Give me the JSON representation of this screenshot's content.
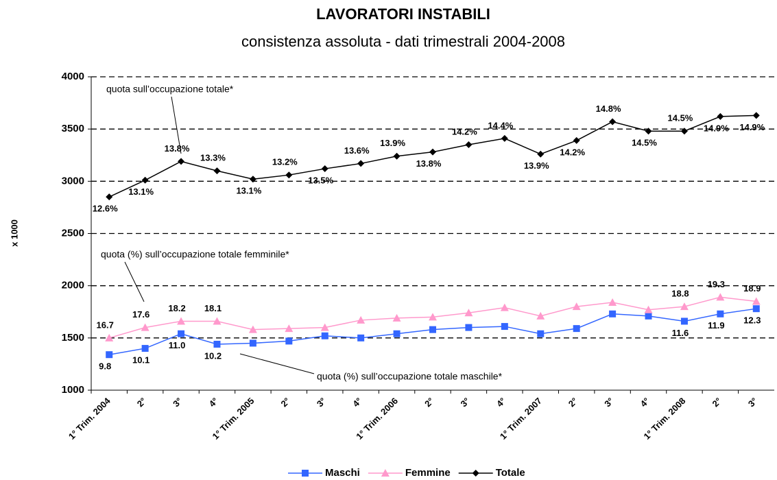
{
  "chart_data": {
    "type": "line",
    "title": "LAVORATORI INSTABILI",
    "subtitle": "consistenza assoluta - dati trimestrali 2004-2008",
    "y_label": "x 1000",
    "categories": [
      "1° Trim. 2004",
      "2°",
      "3°",
      "4°",
      "1° Trim. 2005",
      "2°",
      "3°",
      "4°",
      "1° Trim. 2006",
      "2°",
      "3°",
      "4°",
      "1° Trim. 2007",
      "2°",
      "3°",
      "4°",
      "1° Trim. 2008",
      "2°",
      "3°"
    ],
    "series": [
      {
        "name": "Maschi",
        "color": "#3366ff",
        "marker": "square",
        "values": [
          1340,
          1400,
          1540,
          1440,
          1450,
          1470,
          1520,
          1500,
          1540,
          1580,
          1600,
          1610,
          1540,
          1590,
          1730,
          1710,
          1660,
          1730,
          1780
        ],
        "point_labels": [
          "9.8",
          "10.1",
          "11.0",
          "10.2",
          null,
          null,
          null,
          null,
          null,
          null,
          null,
          null,
          null,
          null,
          null,
          null,
          "11.6",
          "11.9",
          "12.3"
        ]
      },
      {
        "name": "Femmine",
        "color": "#ff99cc",
        "marker": "triangle",
        "values": [
          1500,
          1600,
          1660,
          1660,
          1580,
          1590,
          1600,
          1670,
          1690,
          1700,
          1740,
          1790,
          1710,
          1800,
          1840,
          1770,
          1800,
          1890,
          1850
        ],
        "point_labels": [
          "16.7",
          "17.6",
          "18.2",
          "18.1",
          null,
          null,
          null,
          null,
          null,
          null,
          null,
          null,
          null,
          null,
          null,
          null,
          "18.8",
          "19.3",
          "18.9"
        ]
      },
      {
        "name": "Totale",
        "color": "#000000",
        "marker": "diamond",
        "values": [
          2850,
          3010,
          3190,
          3100,
          3020,
          3060,
          3120,
          3170,
          3240,
          3280,
          3350,
          3410,
          3260,
          3390,
          3570,
          3480,
          3480,
          3620,
          3630
        ],
        "point_labels": [
          "12.6%",
          "13.1%",
          "13.8%",
          "13.3%",
          "13.1%",
          "13.2%",
          "13.5%",
          "13.6%",
          "13.9%",
          "13.8%",
          "14.2%",
          "14.4%",
          "13.9%",
          "14.2%",
          "14.8%",
          "14.5%",
          "14.5%",
          "14.9%",
          "14.9%"
        ]
      }
    ],
    "annotations": [
      "quota sull’occupazione totale*",
      "quota (%) sull’occupazione totale femminile*",
      "quota (%) sull’occupazione totale maschile*"
    ],
    "ylim": [
      1000,
      4000
    ],
    "yticks": [
      1000,
      1500,
      2000,
      2500,
      3000,
      3500,
      4000
    ],
    "grid": true,
    "legend": "bottom"
  }
}
